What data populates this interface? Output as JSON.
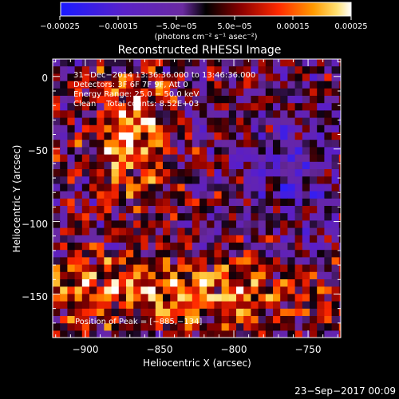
{
  "chart_data": {
    "type": "heatmap",
    "title": "Reconstructed RHESSI Image",
    "xlabel": "Heliocentric X (arcsec)",
    "ylabel": "Heliocentric Y (arcsec)",
    "xlim": [
      -922,
      -728
    ],
    "ylim": [
      -180,
      12
    ],
    "xticks": [
      -900,
      -850,
      -800,
      -750
    ],
    "xtick_labels": [
      "−900",
      "−850",
      "−800",
      "−750"
    ],
    "yticks": [
      0,
      -50,
      -100,
      -150
    ],
    "ytick_labels": [
      "0",
      "−50",
      "−100",
      "−150"
    ],
    "colormap": "hot with blue/purple negatives",
    "colorbar": {
      "range": [
        -0.00025,
        0.00025
      ],
      "tick_labels": [
        "−0.00025",
        "−0.00015",
        "−5.0e−05",
        "5.0e−05",
        "0.00015",
        "0.00025"
      ],
      "unit_label": "(photons cm⁻² s⁻¹ asec⁻²)"
    },
    "annotations": [
      "31−Dec−2014 13:36:36.000 to 13:46:36.000",
      "Detectors: 3F 6F 7F 9F, Att 0",
      "Energy Range: 25.0 − 50.0 keV",
      "Clean    Total counts: 8.52E+03"
    ],
    "peak_label": "Position of Peak = [−885,−134]",
    "peak": [
      -885,
      -134
    ]
  },
  "footer": {
    "timestamp": "23−Sep−2017 00:09"
  }
}
